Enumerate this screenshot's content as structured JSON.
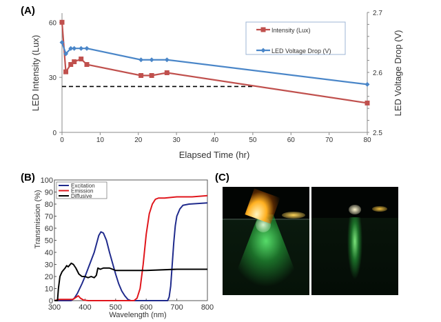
{
  "chart_data": [
    {
      "panel_label": "(A)",
      "type": "line",
      "xlabel": "Elapsed Time (hr)",
      "ylabel": "LED Intensity (Lux)",
      "y2label": "LED Voltage Drop (V)",
      "xlim": [
        0,
        80
      ],
      "ylim": [
        0,
        65
      ],
      "y2lim": [
        2.5,
        2.7
      ],
      "xticks": [
        0,
        10,
        20,
        30,
        40,
        50,
        60,
        70,
        80
      ],
      "yticks": [
        0,
        30,
        60
      ],
      "y2ticks": [
        "2.5",
        "2.6",
        "2.7"
      ],
      "legend_position": "top-right",
      "grid": false,
      "series": [
        {
          "name": "Intensity (Lux)",
          "axis": "left",
          "color": "#c0504d",
          "marker": "square",
          "x": [
            0,
            1,
            2.3,
            3.2,
            5,
            6.5,
            20.7,
            23.5,
            27.5,
            80
          ],
          "y": [
            60,
            33,
            37,
            38.5,
            40,
            37,
            31,
            31,
            32.5,
            16
          ]
        },
        {
          "name": "LED Voltage Drop (V)",
          "axis": "right",
          "color": "#4a86c8",
          "marker": "diamond",
          "x": [
            0,
            1,
            2.3,
            3.2,
            5,
            6.5,
            20.7,
            23.5,
            27.5,
            80
          ],
          "y": [
            2.65,
            2.631,
            2.64,
            2.64,
            2.64,
            2.64,
            2.621,
            2.621,
            2.621,
            2.58
          ]
        }
      ],
      "reference_line": {
        "style": "dashed",
        "color": "#000000",
        "y": 25,
        "x": [
          0,
          50
        ]
      }
    },
    {
      "panel_label": "(B)",
      "type": "line",
      "xlabel": "Wavelength (nm)",
      "ylabel": "Transmission (%)",
      "xlim": [
        300,
        800
      ],
      "ylim": [
        0,
        100
      ],
      "xticks": [
        300,
        400,
        500,
        600,
        700,
        800
      ],
      "yticks": [
        0,
        10,
        20,
        30,
        40,
        50,
        60,
        70,
        80,
        90,
        100
      ],
      "legend_position": "top-left",
      "grid": false,
      "series": [
        {
          "name": "Excitation",
          "color": "#1f2a8c",
          "x": [
            300,
            355,
            365,
            375,
            390,
            400,
            415,
            430,
            445,
            452,
            460,
            470,
            480,
            490,
            500,
            510,
            520,
            530,
            540,
            550,
            670,
            675,
            680,
            685,
            690,
            695,
            700,
            710,
            720,
            740,
            800
          ],
          "y": [
            0,
            0,
            2,
            6,
            14,
            20,
            30,
            40,
            54,
            57,
            56,
            50,
            40,
            31,
            22,
            14,
            8,
            4,
            1,
            0,
            0,
            3,
            12,
            30,
            48,
            62,
            70,
            76,
            79,
            80,
            81
          ]
        },
        {
          "name": "Emission",
          "color": "#e0151b",
          "x": [
            300,
            315,
            360,
            372,
            378,
            385,
            395,
            410,
            560,
            570,
            580,
            590,
            600,
            610,
            620,
            630,
            640,
            660,
            700,
            750,
            800
          ],
          "y": [
            0,
            1,
            1,
            3,
            4,
            2,
            0.5,
            0,
            0,
            2,
            10,
            30,
            55,
            72,
            80,
            84,
            85,
            85,
            86,
            86,
            87
          ]
        },
        {
          "name": "Diffusive",
          "color": "#000000",
          "x": [
            300,
            310,
            313,
            318,
            325,
            335,
            340,
            345,
            355,
            362,
            370,
            380,
            390,
            400,
            410,
            420,
            430,
            437,
            442,
            450,
            460,
            480,
            500,
            520,
            550,
            600,
            700,
            800
          ],
          "y": [
            0,
            0,
            10,
            20,
            24,
            27,
            29,
            28,
            31,
            30,
            27,
            22,
            20,
            20,
            19,
            20,
            19,
            21,
            27,
            26,
            27,
            27,
            25,
            25,
            25,
            25,
            26,
            26
          ]
        }
      ]
    }
  ],
  "panel_c": {
    "panel_label": "(C)",
    "glow_color": "#3fd45a",
    "flame_color": "#ffc640"
  }
}
